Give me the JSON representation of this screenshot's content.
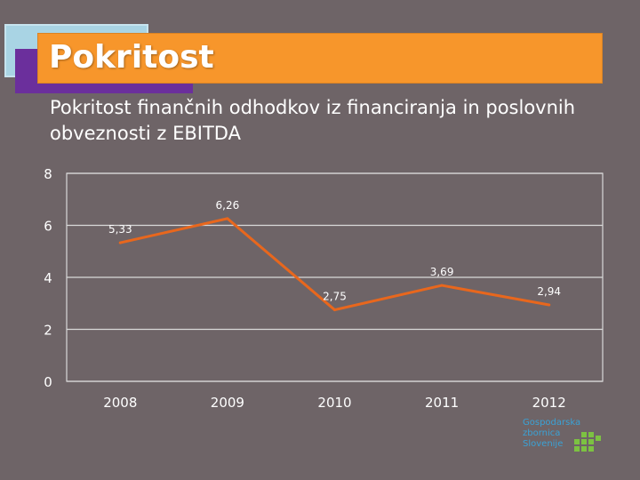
{
  "slide": {
    "title": "Pokritost",
    "subtitle": "Pokritost finančnih odhodkov iz financiranja in poslovnih obveznosti z EBITDA"
  },
  "chart_data": {
    "type": "line",
    "categories": [
      "2008",
      "2009",
      "2010",
      "2011",
      "2012"
    ],
    "series": [
      {
        "values": [
          5.33,
          6.26,
          2.75,
          3.69,
          2.94
        ],
        "labels": [
          "5,33",
          "6,26",
          "2,75",
          "3,69",
          "2,94"
        ]
      }
    ],
    "ylim": [
      0,
      8
    ],
    "yticks": [
      0,
      2,
      4,
      6,
      8
    ],
    "ytick_labels": [
      "0",
      "2",
      "4",
      "6",
      "8"
    ],
    "grid": true,
    "line_color": "#e8671d",
    "title": "",
    "xlabel": "",
    "ylabel": ""
  },
  "logo": {
    "lines": [
      "Gospodarska",
      "zbornica",
      "Slovenije"
    ],
    "color": "#3aa2d6",
    "accent": "#7cc242"
  }
}
